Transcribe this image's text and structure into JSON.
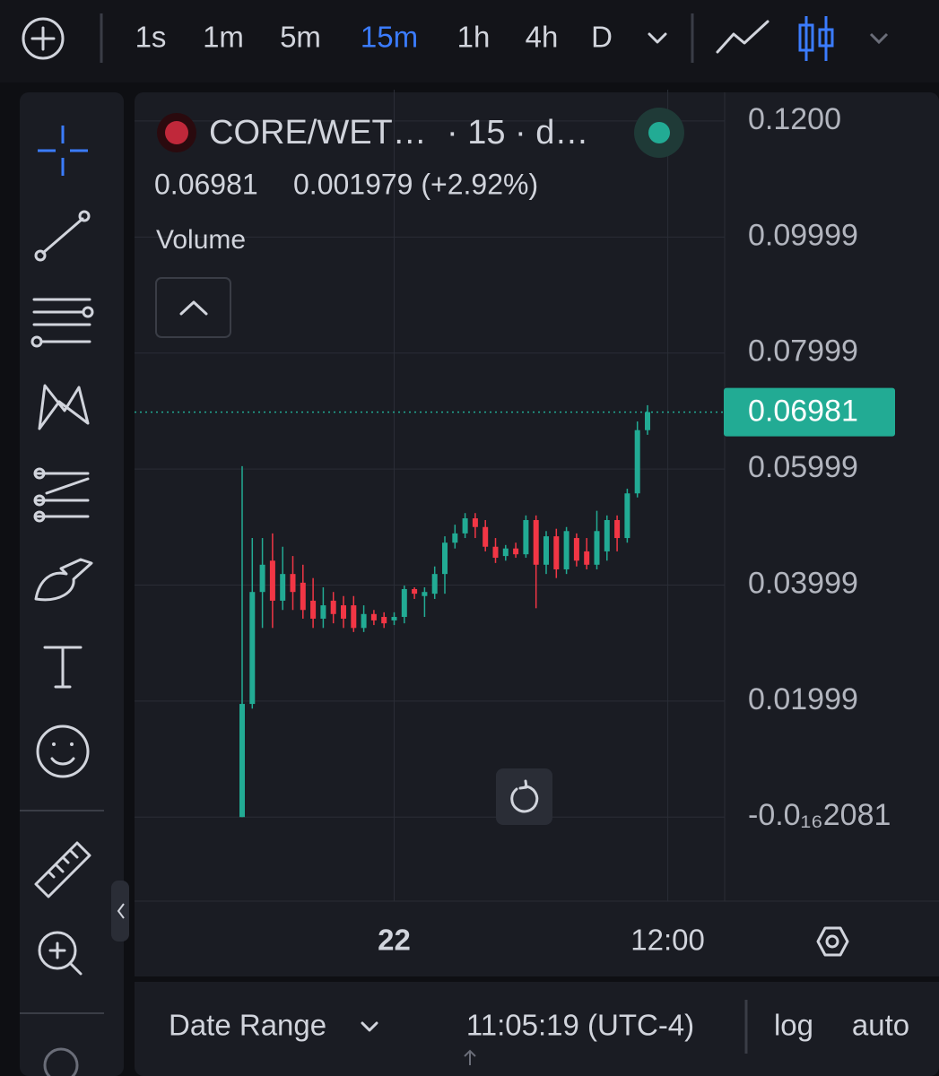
{
  "toolbar": {
    "intervals": [
      "1s",
      "1m",
      "5m",
      "15m",
      "1h",
      "4h",
      "D"
    ],
    "active_interval": 3
  },
  "header": {
    "symbol": "CORE/WET…",
    "meta": "· 15 · d…",
    "price": "0.06981",
    "change": "0.001979 (+2.92%)",
    "indicator": "Volume"
  },
  "chart_data": {
    "type": "candlestick",
    "categories": [
      null,
      null,
      null,
      null,
      null,
      null,
      null,
      null,
      null,
      null,
      null,
      null,
      null,
      null,
      null,
      "22",
      null,
      null,
      null,
      null,
      null,
      null,
      null,
      null,
      null,
      null,
      null,
      null,
      null,
      null,
      null,
      null,
      null,
      null,
      null,
      null,
      null,
      null,
      null,
      null,
      null,
      null,
      "12:00"
    ],
    "open": [
      0,
      0.0195,
      0.0388,
      0.0442,
      0.0373,
      0.0419,
      0.0404,
      0.0373,
      0.0342,
      0.0373,
      0.0365,
      0.0365,
      0.0326,
      0.035,
      0.0345,
      0.0339,
      0.0345,
      0.0393,
      0.0381,
      0.0385,
      0.0419,
      0.0473,
      0.0489,
      0.0515,
      0.05,
      0.0466,
      0.045,
      0.0463,
      0.0453,
      0.0512,
      0.0435,
      0.0484,
      0.0427,
      0.0481,
      0.0458,
      0.0435,
      0.0458,
      0.0512,
      0.0481,
      0.0558,
      0.0667,
      null,
      null
    ],
    "high": [
      0.0605,
      0.0481,
      0.0481,
      0.0489,
      0.0466,
      0.045,
      0.0435,
      0.0412,
      0.0396,
      0.0388,
      0.0381,
      0.0381,
      0.0365,
      0.0357,
      0.0353,
      0.0353,
      0.0399,
      0.0396,
      0.0396,
      0.0432,
      0.0484,
      0.0504,
      0.0524,
      0.0524,
      0.0512,
      0.0481,
      0.0469,
      0.0473,
      0.052,
      0.052,
      0.0493,
      0.0497,
      0.05,
      0.0489,
      0.0481,
      0.0528,
      0.052,
      0.052,
      0.0566,
      0.0682,
      0.071,
      null,
      null
    ],
    "low": [
      0,
      0.0187,
      0.0326,
      0.0326,
      0.0357,
      0.0357,
      0.0342,
      0.0326,
      0.0326,
      0.0334,
      0.0326,
      0.0319,
      0.0319,
      0.0331,
      0.0326,
      0.0331,
      0.0334,
      0.0376,
      0.0345,
      0.0376,
      0.0385,
      0.0463,
      0.0481,
      0.0481,
      0.0458,
      0.0438,
      0.0442,
      0.0447,
      0.0447,
      0.036,
      0.0419,
      0.0412,
      0.0419,
      0.0432,
      0.0427,
      0.0427,
      0.0442,
      0.0458,
      0.0473,
      0.0551,
      0.0659,
      null,
      null
    ],
    "close": [
      0.0195,
      0.0388,
      0.0435,
      0.0373,
      0.0419,
      0.0388,
      0.0357,
      0.0342,
      0.0365,
      0.035,
      0.0342,
      0.0326,
      0.035,
      0.0339,
      0.0334,
      0.0345,
      0.0393,
      0.0385,
      0.0388,
      0.0419,
      0.0473,
      0.0489,
      0.0515,
      0.05,
      0.0466,
      0.0447,
      0.0463,
      0.0453,
      0.0512,
      0.0435,
      0.0484,
      0.0427,
      0.0493,
      0.0442,
      0.0435,
      0.0493,
      0.0512,
      0.0481,
      0.0558,
      0.0667,
      0.06981,
      null,
      null
    ],
    "up_color": "#22ab94",
    "down_color": "#f23645",
    "ylim": [
      -0.0145,
      0.1254
    ],
    "yticks": [
      {
        "value": 0.12,
        "label": "0.1200"
      },
      0.09999,
      0.07999,
      0.05999,
      0.03999,
      0.01999,
      {
        "value": -2.081e-17,
        "label": "-0.0₁₆2081"
      }
    ],
    "grid": true,
    "price_line": 0.06981
  },
  "footer": {
    "date_range": "Date Range",
    "time": "11:05:19 (UTC-4)",
    "log": "log",
    "auto": "auto"
  }
}
